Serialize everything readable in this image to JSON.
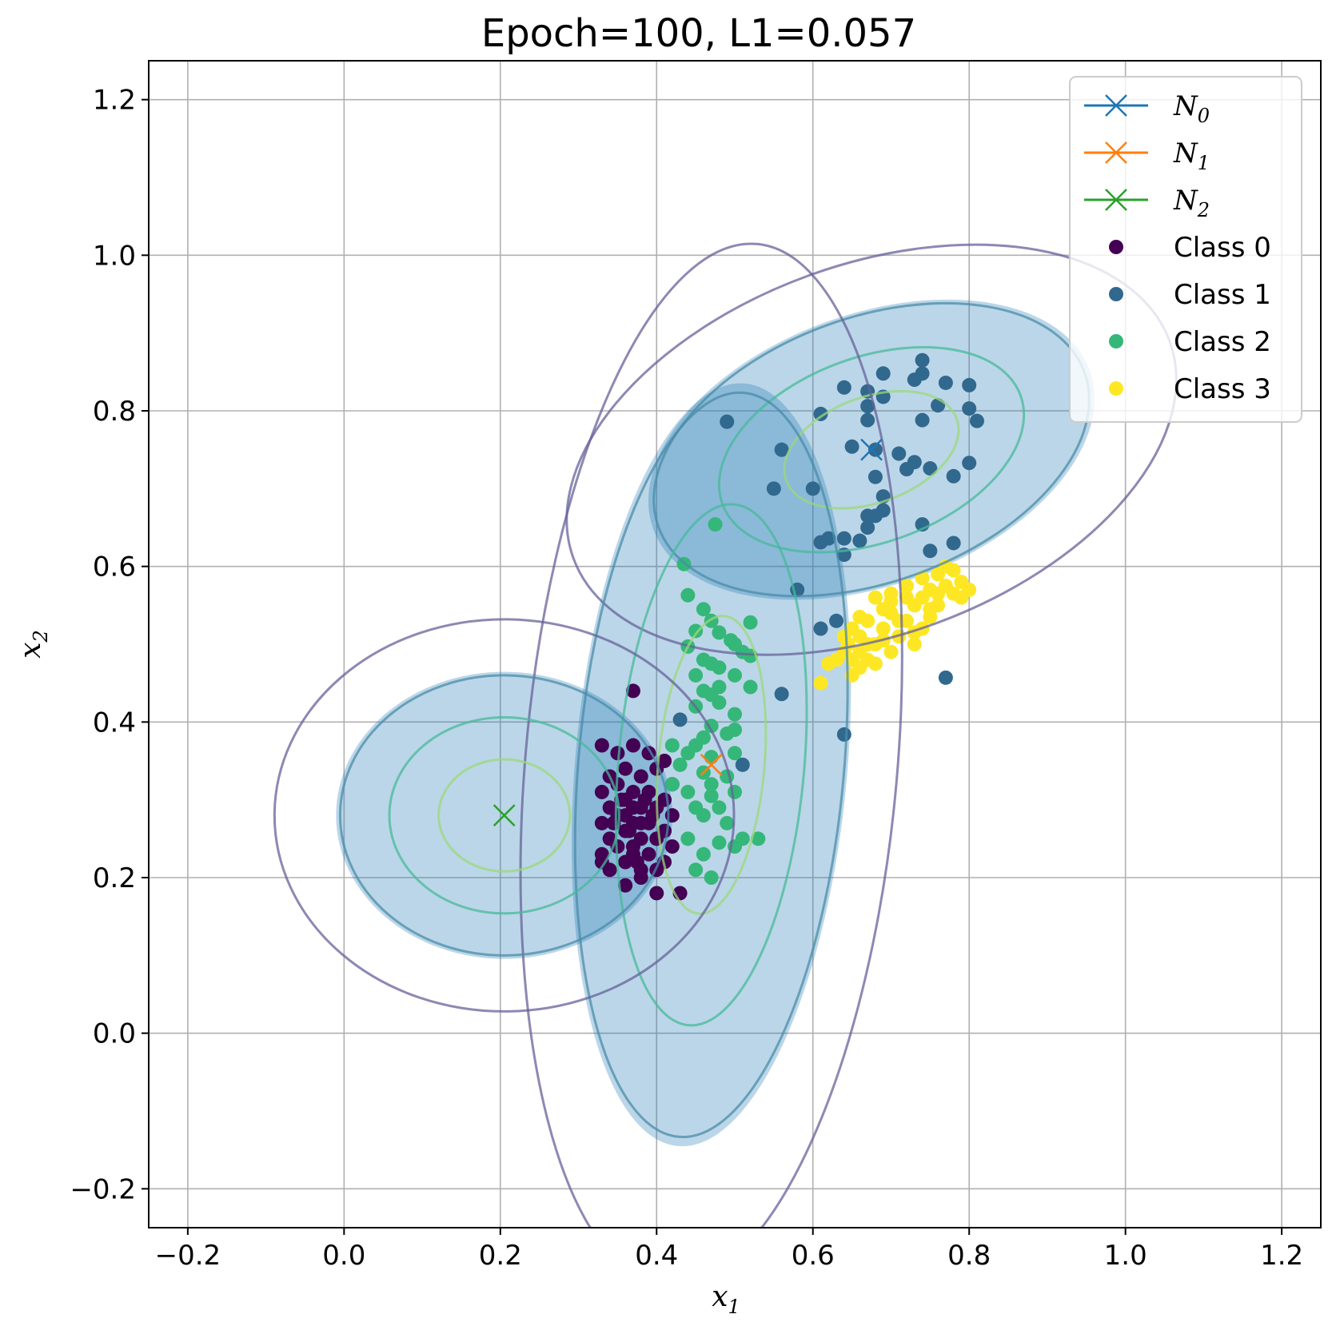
{
  "chart_data": {
    "type": "scatter",
    "title": "Epoch=100, L1=0.057",
    "xlabel": "x",
    "xlabel_sub": "1",
    "ylabel": "x",
    "ylabel_sub": "2",
    "xlim": [
      -0.25,
      1.25
    ],
    "ylim": [
      -0.25,
      1.25
    ],
    "xticks": [
      -0.2,
      0.0,
      0.2,
      0.4,
      0.6,
      0.8,
      1.0,
      1.2
    ],
    "yticks": [
      -0.2,
      0.0,
      0.2,
      0.4,
      0.6,
      0.8,
      1.0,
      1.2
    ],
    "xtick_labels": [
      "−0.2",
      "0.0",
      "0.2",
      "0.4",
      "0.6",
      "0.8",
      "1.0",
      "1.2"
    ],
    "ytick_labels": [
      "−0.2",
      "0.0",
      "0.2",
      "0.4",
      "0.6",
      "0.8",
      "1.0",
      "1.2"
    ],
    "grid": true,
    "legend_position": "top-right",
    "gaussians": [
      {
        "name": "N",
        "sub": "0",
        "color": "#1f77b4",
        "mean": [
          0.675,
          0.75
        ],
        "sx": 0.145,
        "sy": 0.085,
        "angle_deg": 20
      },
      {
        "name": "N",
        "sub": "1",
        "color": "#ff7f0e",
        "mean": [
          0.47,
          0.345
        ],
        "sx": 0.085,
        "sy": 0.24,
        "angle_deg": -5
      },
      {
        "name": "N",
        "sub": "2",
        "color": "#2ca02c",
        "mean": [
          0.205,
          0.28
        ],
        "sx": 0.105,
        "sy": 0.09,
        "angle_deg": 0
      }
    ],
    "contour_levels": [
      {
        "scale": 0.8,
        "color": "#9bd87a"
      },
      {
        "scale": 1.4,
        "color": "#47b99a"
      },
      {
        "scale": 2.0,
        "color": "#4a8ca8"
      },
      {
        "scale": 2.8,
        "color": "#65629a"
      }
    ],
    "shaded_scale": 2.05,
    "series": [
      {
        "name": "Class 0",
        "color": "#440154",
        "points": [
          [
            0.33,
            0.37
          ],
          [
            0.35,
            0.36
          ],
          [
            0.37,
            0.37
          ],
          [
            0.39,
            0.36
          ],
          [
            0.41,
            0.35
          ],
          [
            0.34,
            0.33
          ],
          [
            0.36,
            0.34
          ],
          [
            0.38,
            0.33
          ],
          [
            0.4,
            0.34
          ],
          [
            0.42,
            0.32
          ],
          [
            0.33,
            0.31
          ],
          [
            0.35,
            0.32
          ],
          [
            0.37,
            0.31
          ],
          [
            0.39,
            0.31
          ],
          [
            0.41,
            0.3
          ],
          [
            0.34,
            0.29
          ],
          [
            0.36,
            0.3
          ],
          [
            0.38,
            0.29
          ],
          [
            0.4,
            0.29
          ],
          [
            0.42,
            0.28
          ],
          [
            0.33,
            0.27
          ],
          [
            0.35,
            0.28
          ],
          [
            0.37,
            0.27
          ],
          [
            0.39,
            0.27
          ],
          [
            0.41,
            0.26
          ],
          [
            0.34,
            0.25
          ],
          [
            0.36,
            0.26
          ],
          [
            0.38,
            0.25
          ],
          [
            0.4,
            0.25
          ],
          [
            0.42,
            0.24
          ],
          [
            0.33,
            0.23
          ],
          [
            0.35,
            0.24
          ],
          [
            0.37,
            0.23
          ],
          [
            0.39,
            0.23
          ],
          [
            0.41,
            0.22
          ],
          [
            0.34,
            0.21
          ],
          [
            0.36,
            0.22
          ],
          [
            0.38,
            0.21
          ],
          [
            0.4,
            0.21
          ],
          [
            0.36,
            0.19
          ],
          [
            0.38,
            0.2
          ],
          [
            0.4,
            0.18
          ],
          [
            0.43,
            0.18
          ],
          [
            0.33,
            0.22
          ],
          [
            0.37,
            0.44
          ],
          [
            0.37,
            0.29
          ],
          [
            0.36,
            0.28
          ],
          [
            0.38,
            0.27
          ],
          [
            0.37,
            0.24
          ],
          [
            0.385,
            0.3
          ],
          [
            0.365,
            0.26
          ],
          [
            0.395,
            0.28
          ],
          [
            0.355,
            0.3
          ],
          [
            0.375,
            0.22
          ],
          [
            0.345,
            0.27
          ]
        ]
      },
      {
        "name": "Class 1",
        "color": "#31688e",
        "points": [
          [
            0.74,
            0.865
          ],
          [
            0.69,
            0.848
          ],
          [
            0.74,
            0.848
          ],
          [
            0.73,
            0.84
          ],
          [
            0.77,
            0.836
          ],
          [
            0.8,
            0.833
          ],
          [
            0.64,
            0.83
          ],
          [
            0.67,
            0.825
          ],
          [
            0.69,
            0.818
          ],
          [
            0.67,
            0.806
          ],
          [
            0.76,
            0.807
          ],
          [
            0.61,
            0.796
          ],
          [
            0.67,
            0.788
          ],
          [
            0.74,
            0.788
          ],
          [
            0.81,
            0.787
          ],
          [
            0.8,
            0.803
          ],
          [
            0.49,
            0.786
          ],
          [
            0.65,
            0.754
          ],
          [
            0.56,
            0.75
          ],
          [
            0.68,
            0.75
          ],
          [
            0.71,
            0.745
          ],
          [
            0.73,
            0.734
          ],
          [
            0.75,
            0.726
          ],
          [
            0.72,
            0.725
          ],
          [
            0.8,
            0.733
          ],
          [
            0.78,
            0.716
          ],
          [
            0.68,
            0.715
          ],
          [
            0.6,
            0.7
          ],
          [
            0.55,
            0.7
          ],
          [
            0.69,
            0.69
          ],
          [
            0.69,
            0.672
          ],
          [
            0.67,
            0.665
          ],
          [
            0.68,
            0.665
          ],
          [
            0.74,
            0.654
          ],
          [
            0.67,
            0.65
          ],
          [
            0.61,
            0.631
          ],
          [
            0.62,
            0.636
          ],
          [
            0.64,
            0.636
          ],
          [
            0.66,
            0.633
          ],
          [
            0.64,
            0.615
          ],
          [
            0.75,
            0.62
          ],
          [
            0.78,
            0.63
          ],
          [
            0.58,
            0.57
          ],
          [
            0.61,
            0.52
          ],
          [
            0.63,
            0.53
          ],
          [
            0.77,
            0.457
          ],
          [
            0.56,
            0.436
          ],
          [
            0.43,
            0.403
          ],
          [
            0.64,
            0.384
          ],
          [
            0.51,
            0.345
          ]
        ]
      },
      {
        "name": "Class 2",
        "color": "#35b779",
        "points": [
          [
            0.475,
            0.654
          ],
          [
            0.435,
            0.603
          ],
          [
            0.44,
            0.563
          ],
          [
            0.46,
            0.545
          ],
          [
            0.47,
            0.53
          ],
          [
            0.52,
            0.528
          ],
          [
            0.45,
            0.517
          ],
          [
            0.48,
            0.515
          ],
          [
            0.495,
            0.505
          ],
          [
            0.5,
            0.5
          ],
          [
            0.44,
            0.497
          ],
          [
            0.51,
            0.49
          ],
          [
            0.52,
            0.485
          ],
          [
            0.46,
            0.48
          ],
          [
            0.47,
            0.475
          ],
          [
            0.48,
            0.47
          ],
          [
            0.45,
            0.46
          ],
          [
            0.5,
            0.46
          ],
          [
            0.48,
            0.445
          ],
          [
            0.52,
            0.445
          ],
          [
            0.46,
            0.44
          ],
          [
            0.47,
            0.435
          ],
          [
            0.45,
            0.42
          ],
          [
            0.48,
            0.425
          ],
          [
            0.5,
            0.41
          ],
          [
            0.47,
            0.395
          ],
          [
            0.49,
            0.385
          ],
          [
            0.46,
            0.38
          ],
          [
            0.5,
            0.39
          ],
          [
            0.45,
            0.37
          ],
          [
            0.42,
            0.37
          ],
          [
            0.44,
            0.36
          ],
          [
            0.47,
            0.355
          ],
          [
            0.5,
            0.36
          ],
          [
            0.43,
            0.345
          ],
          [
            0.46,
            0.335
          ],
          [
            0.49,
            0.33
          ],
          [
            0.42,
            0.32
          ],
          [
            0.44,
            0.31
          ],
          [
            0.47,
            0.305
          ],
          [
            0.5,
            0.31
          ],
          [
            0.45,
            0.29
          ],
          [
            0.48,
            0.29
          ],
          [
            0.46,
            0.28
          ],
          [
            0.49,
            0.27
          ],
          [
            0.44,
            0.25
          ],
          [
            0.48,
            0.245
          ],
          [
            0.51,
            0.25
          ],
          [
            0.53,
            0.25
          ],
          [
            0.45,
            0.21
          ],
          [
            0.47,
            0.2
          ],
          [
            0.46,
            0.23
          ],
          [
            0.5,
            0.24
          ],
          [
            0.47,
            0.32
          ]
        ]
      },
      {
        "name": "Class 3",
        "color": "#fde725",
        "points": [
          [
            0.61,
            0.45
          ],
          [
            0.62,
            0.475
          ],
          [
            0.64,
            0.49
          ],
          [
            0.65,
            0.46
          ],
          [
            0.66,
            0.47
          ],
          [
            0.645,
            0.5
          ],
          [
            0.66,
            0.51
          ],
          [
            0.67,
            0.48
          ],
          [
            0.68,
            0.5
          ],
          [
            0.67,
            0.53
          ],
          [
            0.69,
            0.52
          ],
          [
            0.7,
            0.49
          ],
          [
            0.7,
            0.54
          ],
          [
            0.71,
            0.51
          ],
          [
            0.72,
            0.53
          ],
          [
            0.73,
            0.5
          ],
          [
            0.73,
            0.55
          ],
          [
            0.74,
            0.52
          ],
          [
            0.75,
            0.545
          ],
          [
            0.75,
            0.57
          ],
          [
            0.76,
            0.55
          ],
          [
            0.77,
            0.575
          ],
          [
            0.78,
            0.565
          ],
          [
            0.79,
            0.58
          ],
          [
            0.8,
            0.57
          ],
          [
            0.77,
            0.6
          ],
          [
            0.76,
            0.59
          ],
          [
            0.68,
            0.56
          ],
          [
            0.7,
            0.565
          ],
          [
            0.72,
            0.575
          ],
          [
            0.74,
            0.585
          ],
          [
            0.66,
            0.535
          ],
          [
            0.65,
            0.52
          ],
          [
            0.69,
            0.545
          ],
          [
            0.71,
            0.53
          ],
          [
            0.67,
            0.5
          ],
          [
            0.63,
            0.48
          ],
          [
            0.65,
            0.48
          ],
          [
            0.68,
            0.475
          ],
          [
            0.74,
            0.56
          ],
          [
            0.78,
            0.595
          ],
          [
            0.79,
            0.56
          ],
          [
            0.72,
            0.56
          ],
          [
            0.75,
            0.535
          ],
          [
            0.7,
            0.555
          ],
          [
            0.69,
            0.505
          ],
          [
            0.66,
            0.49
          ],
          [
            0.64,
            0.51
          ],
          [
            0.73,
            0.515
          ],
          [
            0.76,
            0.565
          ]
        ]
      }
    ]
  }
}
